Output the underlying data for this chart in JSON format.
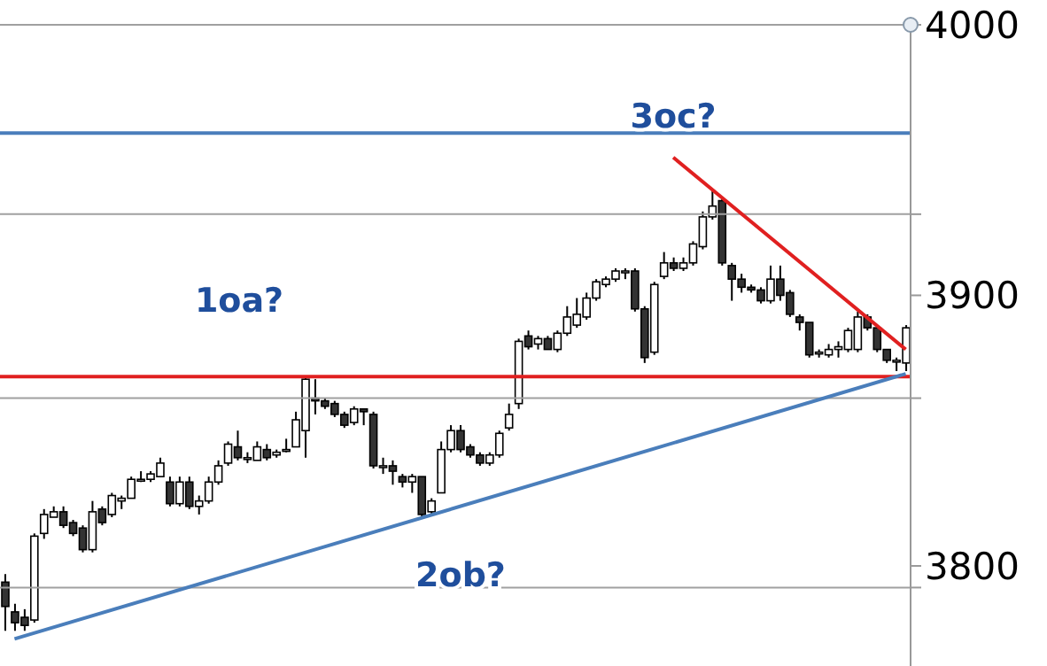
{
  "chart_data": {
    "type": "candlestick",
    "color": "#000000",
    "categories": [
      null,
      null,
      null,
      null,
      null,
      null,
      null,
      null,
      null,
      null,
      null,
      null,
      null,
      null,
      null,
      null,
      null,
      null,
      null,
      null,
      null,
      null,
      null,
      null,
      null,
      null,
      null,
      null,
      null,
      null,
      null,
      null,
      null,
      null,
      null,
      null,
      null,
      null,
      null,
      null,
      null,
      null,
      null,
      null,
      null,
      null,
      null,
      null,
      null,
      null,
      null,
      null,
      null,
      null,
      null,
      null,
      null,
      null,
      null,
      null,
      null,
      null,
      null,
      null,
      null,
      null,
      null,
      null,
      null,
      null,
      null,
      null,
      null,
      null,
      null,
      null,
      null,
      null,
      null,
      null,
      null,
      null,
      null,
      null,
      null,
      null,
      null,
      null,
      null,
      null,
      null,
      null,
      null,
      null
    ],
    "ohlc": [
      [
        3794,
        3797,
        3776,
        3785
      ],
      [
        3783,
        3786,
        3776,
        3779
      ],
      [
        3781,
        3784,
        3776,
        3778
      ],
      [
        3780,
        3812,
        3779,
        3811
      ],
      [
        3812,
        3821,
        3810,
        3819
      ],
      [
        3818,
        3822,
        3818,
        3820
      ],
      [
        3820,
        3822,
        3814,
        3815
      ],
      [
        3816,
        3817,
        3811,
        3812
      ],
      [
        3814,
        3815,
        3805,
        3806
      ],
      [
        3806,
        3824,
        3805,
        3820
      ],
      [
        3821,
        3822,
        3815,
        3816
      ],
      [
        3819,
        3827,
        3818,
        3826
      ],
      [
        3824,
        3826,
        3821,
        3825
      ],
      [
        3825,
        3833,
        3825,
        3832
      ],
      [
        3832,
        3835,
        3831,
        3832
      ],
      [
        3832,
        3835,
        3831,
        3834
      ],
      [
        3833,
        3840,
        3833,
        3838
      ],
      [
        3831,
        3833,
        3822,
        3823
      ],
      [
        3823,
        3833,
        3822,
        3831
      ],
      [
        3831,
        3833,
        3821,
        3822
      ],
      [
        3822,
        3826,
        3819,
        3824
      ],
      [
        3824,
        3833,
        3823,
        3831
      ],
      [
        3831,
        3839,
        3830,
        3837
      ],
      [
        3838,
        3846,
        3837,
        3845
      ],
      [
        3844,
        3850,
        3839,
        3840
      ],
      [
        3840,
        3842,
        3838,
        3840
      ],
      [
        3839,
        3846,
        3839,
        3844
      ],
      [
        3843,
        3845,
        3839,
        3840
      ],
      [
        3841,
        3843,
        3840,
        3842
      ],
      [
        3843,
        3847,
        3842,
        3843
      ],
      [
        3844,
        3857,
        3844,
        3854
      ],
      [
        3850,
        3870,
        3840,
        3869
      ],
      [
        3862,
        3869,
        3856,
        3861
      ],
      [
        3861,
        3862,
        3858,
        3859
      ],
      [
        3860,
        3861,
        3855,
        3856
      ],
      [
        3856,
        3857,
        3851,
        3852
      ],
      [
        3853,
        3859,
        3852,
        3858
      ],
      [
        3858,
        3858,
        3852,
        3857
      ],
      [
        3856,
        3857,
        3836,
        3837
      ],
      [
        3837,
        3840,
        3834,
        3837
      ],
      [
        3837,
        3839,
        3830,
        3835
      ],
      [
        3833,
        3834,
        3829,
        3831
      ],
      [
        3831,
        3834,
        3827,
        3833
      ],
      [
        3833,
        3833,
        3818,
        3819
      ],
      [
        3820,
        3825,
        3819,
        3824
      ],
      [
        3827,
        3846,
        3827,
        3843
      ],
      [
        3843,
        3852,
        3842,
        3850
      ],
      [
        3850,
        3852,
        3842,
        3843
      ],
      [
        3844,
        3845,
        3840,
        3841
      ],
      [
        3841,
        3842,
        3837,
        3838
      ],
      [
        3838,
        3842,
        3837,
        3841
      ],
      [
        3841,
        3850,
        3840,
        3849
      ],
      [
        3851,
        3860,
        3850,
        3856
      ],
      [
        3860,
        3884,
        3858,
        3883
      ],
      [
        3885,
        3887,
        3880,
        3881
      ],
      [
        3882,
        3885,
        3880,
        3884
      ],
      [
        3884,
        3885,
        3880,
        3880
      ],
      [
        3880,
        3887,
        3879,
        3886
      ],
      [
        3886,
        3896,
        3885,
        3892
      ],
      [
        3889,
        3899,
        3888,
        3893
      ],
      [
        3892,
        3901,
        3891,
        3899
      ],
      [
        3899,
        3906,
        3898,
        3905
      ],
      [
        3904,
        3907,
        3903,
        3906
      ],
      [
        3906,
        3910,
        3905,
        3909
      ],
      [
        3909,
        3910,
        3906,
        3909
      ],
      [
        3909,
        3910,
        3894,
        3895
      ],
      [
        3895,
        3896,
        3875,
        3877
      ],
      [
        3879,
        3905,
        3878,
        3904
      ],
      [
        3907,
        3916,
        3906,
        3912
      ],
      [
        3912,
        3914,
        3909,
        3910
      ],
      [
        3910,
        3914,
        3909,
        3912
      ],
      [
        3912,
        3920,
        3911,
        3919
      ],
      [
        3918,
        3931,
        3917,
        3929
      ],
      [
        3929,
        3939,
        3928,
        3933
      ],
      [
        3935,
        3936,
        3911,
        3912
      ],
      [
        3911,
        3912,
        3898,
        3906
      ],
      [
        3906,
        3908,
        3901,
        3903
      ],
      [
        3903,
        3904,
        3901,
        3902
      ],
      [
        3902,
        3903,
        3897,
        3898
      ],
      [
        3898,
        3911,
        3897,
        3906
      ],
      [
        3906,
        3911,
        3898,
        3900
      ],
      [
        3901,
        3902,
        3892,
        3893
      ],
      [
        3892,
        3893,
        3887,
        3890
      ],
      [
        3890,
        3890,
        3877,
        3878
      ],
      [
        3879,
        3880,
        3877,
        3879
      ],
      [
        3878,
        3882,
        3877,
        3880
      ],
      [
        3880,
        3883,
        3877,
        3881
      ],
      [
        3880,
        3888,
        3879,
        3887
      ],
      [
        3880,
        3894,
        3879,
        3892
      ],
      [
        3892,
        3893,
        3887,
        3888
      ],
      [
        3888,
        3889,
        3879,
        3880
      ],
      [
        3880,
        3880,
        3875,
        3876
      ],
      [
        3876,
        3877,
        3872,
        3876
      ],
      [
        3875,
        3889,
        3872,
        3888
      ]
    ],
    "ylim": [
      3763,
      4000
    ],
    "yticks": [
      4000,
      {
        "value": 3930,
        "label": null
      },
      3900,
      {
        "value": 3862,
        "label": null
      },
      3800,
      {
        "value": 3792,
        "label": null
      }
    ],
    "tick_labels": "y",
    "series": [
      {
        "type": "line",
        "color": "#4a7ebb",
        "values": [
          null,
          3773,
          null,
          null,
          null,
          null,
          null,
          null,
          null,
          null,
          null,
          null,
          null,
          null,
          null,
          null,
          null,
          null,
          null,
          null,
          null,
          null,
          null,
          null,
          null,
          null,
          null,
          null,
          null,
          null,
          null,
          null,
          null,
          null,
          null,
          null,
          null,
          null,
          null,
          null,
          null,
          null,
          null,
          null,
          null,
          null,
          null,
          null,
          null,
          null,
          null,
          null,
          null,
          null,
          null,
          null,
          null,
          null,
          null,
          null,
          null,
          null,
          null,
          null,
          null,
          null,
          null,
          null,
          null,
          null,
          null,
          null,
          null,
          null,
          null,
          null,
          null,
          null,
          null,
          null,
          null,
          null,
          null,
          null,
          null,
          null,
          null,
          null,
          null,
          null,
          null,
          null,
          null,
          3871
        ]
      },
      {
        "type": "line",
        "color": "#e02020",
        "values": [
          null,
          null,
          null,
          null,
          null,
          null,
          null,
          null,
          null,
          null,
          null,
          null,
          null,
          null,
          null,
          null,
          null,
          null,
          null,
          null,
          null,
          null,
          null,
          null,
          null,
          null,
          null,
          null,
          null,
          null,
          null,
          null,
          null,
          null,
          null,
          null,
          null,
          null,
          null,
          null,
          null,
          null,
          null,
          null,
          null,
          null,
          null,
          null,
          null,
          null,
          null,
          null,
          null,
          null,
          null,
          null,
          null,
          null,
          null,
          null,
          null,
          null,
          null,
          null,
          null,
          null,
          null,
          null,
          null,
          3951,
          null,
          null,
          null,
          null,
          null,
          null,
          null,
          null,
          null,
          null,
          null,
          null,
          null,
          null,
          null,
          null,
          null,
          null,
          null,
          null,
          null,
          null,
          null,
          3880
        ]
      }
    ],
    "ref_lines": [
      {
        "axis": "y",
        "value": 3930,
        "color": "#a0a0a0"
      },
      {
        "axis": "y",
        "value": 3862,
        "color": "#a0a0a0"
      },
      {
        "axis": "y",
        "value": 3792,
        "color": "#a0a0a0"
      },
      {
        "axis": "y",
        "value": 3960,
        "color": "#4a7ebb"
      },
      {
        "axis": "y",
        "value": 3870,
        "color": "#e02020"
      }
    ],
    "annotations": [
      "3oc?",
      "1oa?",
      "2ob?"
    ]
  }
}
